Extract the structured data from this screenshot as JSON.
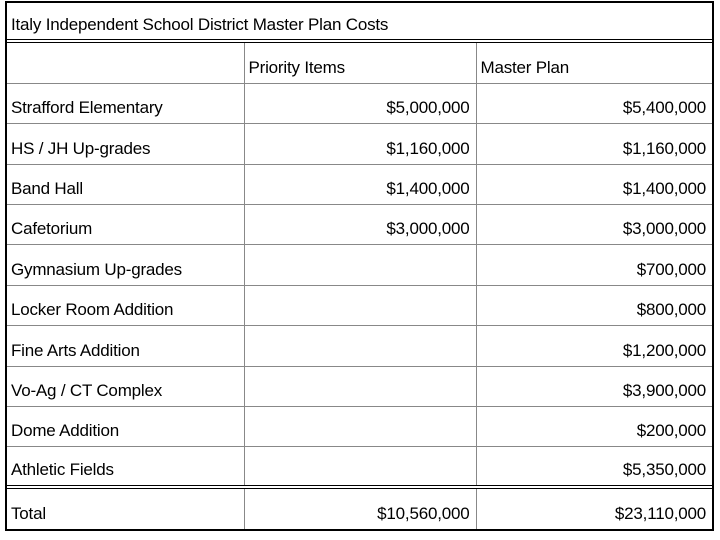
{
  "title": "Italy Independent School District Master Plan Costs",
  "headers": [
    "",
    "Priority Items",
    "Master Plan"
  ],
  "rows": [
    {
      "item": "Strafford Elementary",
      "priority": "$5,000,000",
      "master": "$5,400,000"
    },
    {
      "item": "HS / JH Up-grades",
      "priority": "$1,160,000",
      "master": "$1,160,000"
    },
    {
      "item": "Band Hall",
      "priority": "$1,400,000",
      "master": "$1,400,000"
    },
    {
      "item": "Cafetorium",
      "priority": "$3,000,000",
      "master": "$3,000,000"
    },
    {
      "item": "Gymnasium Up-grades",
      "priority": "",
      "master": "$700,000"
    },
    {
      "item": "Locker Room Addition",
      "priority": "",
      "master": "$800,000"
    },
    {
      "item": "Fine Arts Addition",
      "priority": "",
      "master": "$1,200,000"
    },
    {
      "item": "Vo-Ag / CT Complex",
      "priority": "",
      "master": "$3,900,000"
    },
    {
      "item": "Dome Addition",
      "priority": "",
      "master": "$200,000"
    },
    {
      "item": "Athletic Fields",
      "priority": "",
      "master": "$5,350,000"
    }
  ],
  "total": {
    "item": "Total",
    "priority": "$10,560,000",
    "master": "$23,110,000"
  }
}
